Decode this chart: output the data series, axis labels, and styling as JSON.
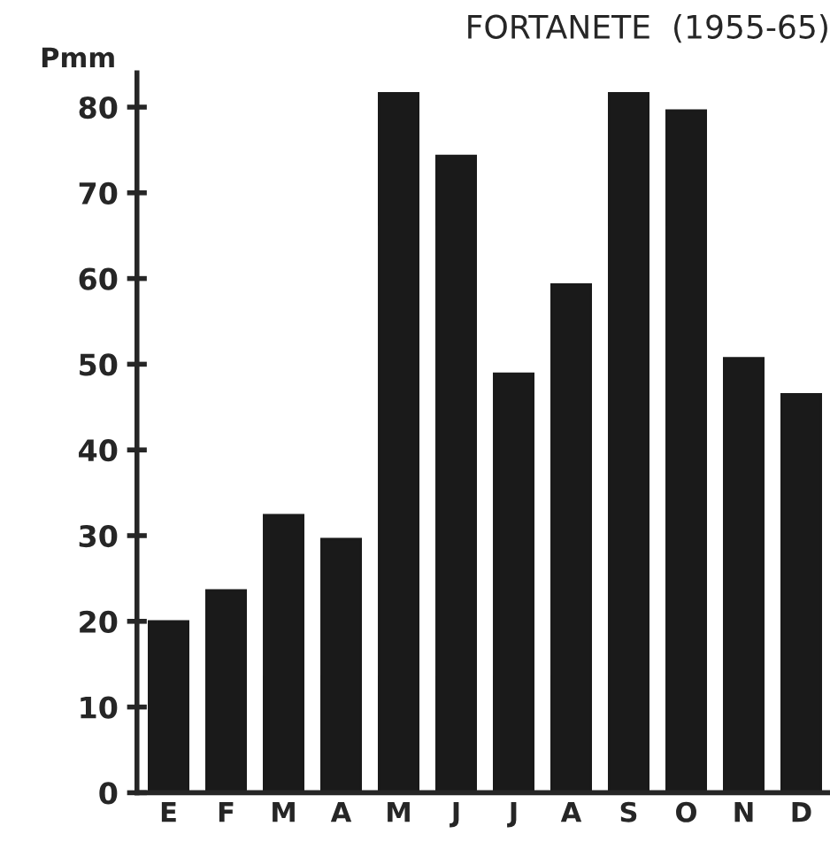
{
  "chart_data": {
    "type": "bar",
    "title": "FORTANETE  (1955-65)",
    "ylabel": "Pmm",
    "categories": [
      "E",
      "F",
      "M",
      "A",
      "M",
      "J",
      "J",
      "A",
      "S",
      "O",
      "N",
      "D"
    ],
    "values": [
      20.0,
      23.6,
      32.4,
      29.6,
      81.6,
      74.3,
      48.9,
      59.3,
      81.6,
      79.6,
      50.7,
      46.5
    ],
    "color": "#1a1a1a",
    "ylim": [
      0,
      84
    ],
    "yticks": [
      0,
      10,
      20,
      30,
      40,
      50,
      60,
      70,
      80
    ],
    "grid": false
  }
}
